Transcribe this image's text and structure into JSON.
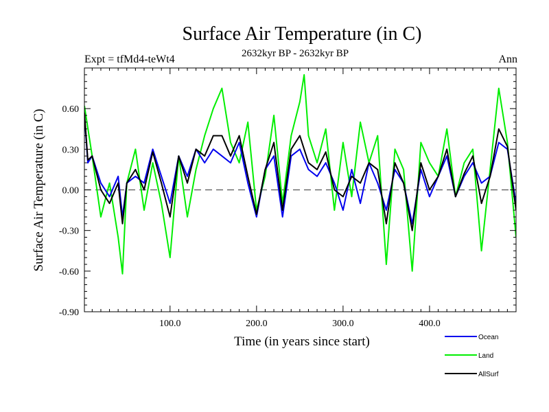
{
  "chart_data": {
    "type": "line",
    "title": "Surface Air Temperature (in C)",
    "subtitle": "2632kyr BP - 2632kyr BP",
    "left_label": "Expt = tfMd4-teWt4",
    "right_label": "Ann",
    "xlabel": "Time (in years since start)",
    "ylabel": "Surface Air Temperature (in C)",
    "xlim": [
      1,
      500
    ],
    "ylim": [
      -0.9,
      0.9
    ],
    "x_ticks": [
      {
        "value": 100,
        "label": "100.0"
      },
      {
        "value": 200,
        "label": "200.0"
      },
      {
        "value": 300,
        "label": "300.0"
      },
      {
        "value": 400,
        "label": "400.0"
      }
    ],
    "y_ticks": [
      {
        "value": 0.6,
        "label": "0.60"
      },
      {
        "value": 0.3,
        "label": "0.30"
      },
      {
        "value": 0.0,
        "label": "0.00"
      },
      {
        "value": -0.3,
        "label": "-0.30"
      },
      {
        "value": -0.6,
        "label": "-0.60"
      },
      {
        "value": -0.9,
        "label": "-0.90"
      }
    ],
    "reference_line": 0.0,
    "series": [
      {
        "name": "Land",
        "color": "#00ee00",
        "x": [
          1,
          10,
          20,
          30,
          40,
          45,
          50,
          60,
          70,
          80,
          90,
          100,
          110,
          120,
          130,
          140,
          150,
          160,
          170,
          180,
          190,
          200,
          210,
          220,
          230,
          240,
          250,
          255,
          260,
          270,
          280,
          290,
          300,
          310,
          320,
          330,
          340,
          350,
          360,
          370,
          380,
          390,
          400,
          410,
          420,
          430,
          440,
          450,
          460,
          470,
          480,
          490,
          500
        ],
        "values": [
          0.62,
          0.25,
          -0.2,
          0.05,
          -0.35,
          -0.62,
          0.05,
          0.3,
          -0.15,
          0.2,
          -0.1,
          -0.5,
          0.25,
          -0.2,
          0.15,
          0.4,
          0.6,
          0.75,
          0.35,
          0.2,
          0.5,
          -0.15,
          0.1,
          0.55,
          -0.1,
          0.4,
          0.65,
          0.85,
          0.4,
          0.2,
          0.45,
          -0.15,
          0.35,
          -0.05,
          0.5,
          0.2,
          0.4,
          -0.55,
          0.3,
          0.15,
          -0.6,
          0.35,
          0.2,
          0.1,
          0.45,
          -0.05,
          0.2,
          0.3,
          -0.45,
          0.15,
          0.75,
          0.35,
          -0.35
        ]
      },
      {
        "name": "Ocean",
        "color": "#0000ee",
        "x": [
          1,
          5,
          10,
          20,
          30,
          40,
          45,
          50,
          60,
          70,
          80,
          90,
          100,
          110,
          120,
          130,
          140,
          150,
          160,
          170,
          180,
          190,
          200,
          210,
          220,
          230,
          240,
          250,
          260,
          270,
          280,
          290,
          300,
          310,
          320,
          330,
          340,
          350,
          360,
          370,
          380,
          390,
          400,
          410,
          420,
          430,
          440,
          450,
          460,
          470,
          480,
          490,
          500
        ],
        "values": [
          0.55,
          0.2,
          0.25,
          0.05,
          -0.05,
          0.1,
          -0.2,
          0.05,
          0.1,
          0.05,
          0.3,
          0.1,
          -0.1,
          0.25,
          0.1,
          0.3,
          0.2,
          0.3,
          0.25,
          0.2,
          0.35,
          0.05,
          -0.2,
          0.15,
          0.25,
          -0.2,
          0.25,
          0.3,
          0.15,
          0.1,
          0.2,
          0.05,
          -0.15,
          0.15,
          -0.1,
          0.2,
          0.05,
          -0.15,
          0.15,
          0.05,
          -0.25,
          0.15,
          -0.05,
          0.1,
          0.25,
          -0.05,
          0.1,
          0.2,
          0.05,
          0.1,
          0.35,
          0.3,
          -0.1
        ]
      },
      {
        "name": "AllSurf",
        "color": "#000000",
        "x": [
          1,
          5,
          10,
          20,
          30,
          40,
          45,
          50,
          60,
          70,
          80,
          90,
          100,
          110,
          120,
          130,
          140,
          150,
          160,
          170,
          180,
          190,
          200,
          210,
          220,
          230,
          240,
          250,
          260,
          270,
          280,
          290,
          300,
          310,
          320,
          330,
          340,
          350,
          360,
          370,
          380,
          390,
          400,
          410,
          420,
          430,
          440,
          450,
          460,
          470,
          480,
          490,
          500
        ],
        "values": [
          0.57,
          0.22,
          0.25,
          0.0,
          -0.1,
          0.05,
          -0.25,
          0.05,
          0.15,
          0.0,
          0.28,
          0.05,
          -0.2,
          0.25,
          0.05,
          0.3,
          0.25,
          0.4,
          0.4,
          0.25,
          0.4,
          0.1,
          -0.18,
          0.15,
          0.35,
          -0.15,
          0.3,
          0.4,
          0.2,
          0.15,
          0.28,
          0.0,
          -0.05,
          0.1,
          0.05,
          0.2,
          0.15,
          -0.25,
          0.2,
          0.05,
          -0.3,
          0.2,
          0.0,
          0.1,
          0.3,
          -0.05,
          0.12,
          0.25,
          -0.1,
          0.1,
          0.45,
          0.32,
          -0.15
        ]
      }
    ],
    "legend": {
      "placement": "bottom-right",
      "items": [
        {
          "name": "Ocean",
          "color": "#0000ee"
        },
        {
          "name": "Land",
          "color": "#00ee00"
        },
        {
          "name": "AllSurf",
          "color": "#000000"
        }
      ]
    }
  }
}
